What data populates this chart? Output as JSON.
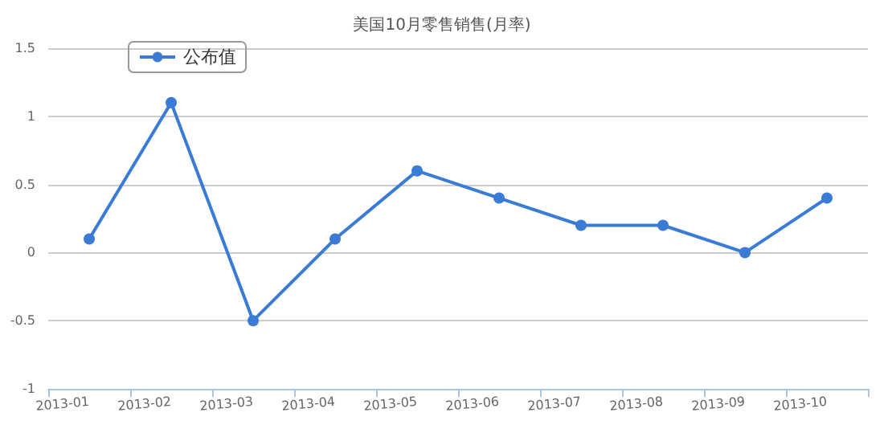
{
  "chart_data": {
    "type": "line",
    "title": "美国10月零售销售(月率)",
    "categories": [
      "2013-01",
      "2013-02",
      "2013-03",
      "2013-04",
      "2013-05",
      "2013-06",
      "2013-07",
      "2013-08",
      "2013-09",
      "2013-10"
    ],
    "series": [
      {
        "name": "公布值",
        "color": "#3a7bd5",
        "values": [
          0.1,
          1.1,
          -0.5,
          0.1,
          0.6,
          0.4,
          0.2,
          0.2,
          0,
          0.4
        ]
      }
    ],
    "ylim": [
      -1,
      1.5
    ],
    "yticks": [
      -1,
      -0.5,
      0,
      0.5,
      1,
      1.5
    ],
    "grid": "y",
    "legend": "top left",
    "marker": "circle",
    "line_style": "solid"
  }
}
